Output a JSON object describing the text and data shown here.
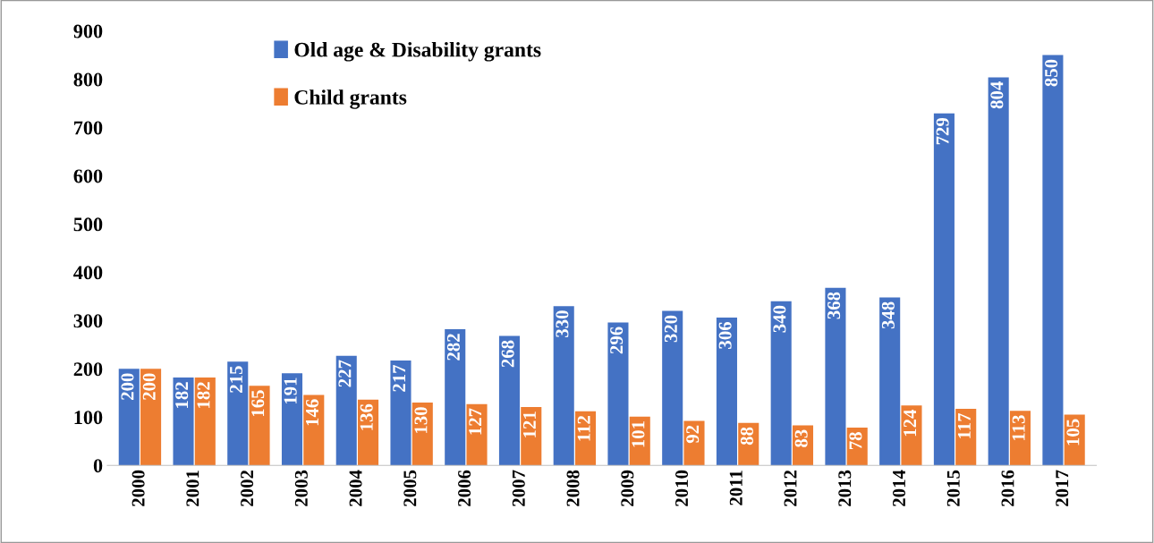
{
  "chart_data": {
    "type": "bar",
    "categories": [
      "2000",
      "2001",
      "2002",
      "2003",
      "2004",
      "2005",
      "2006",
      "2007",
      "2008",
      "2009",
      "2010",
      "2011",
      "2012",
      "2013",
      "2014",
      "2015",
      "2016",
      "2017"
    ],
    "series": [
      {
        "name": "Old age & Disability grants",
        "color": "#4472c4",
        "values": [
          200,
          182,
          215,
          191,
          227,
          217,
          282,
          268,
          330,
          296,
          320,
          306,
          340,
          368,
          348,
          729,
          804,
          850
        ]
      },
      {
        "name": "Child grants",
        "color": "#ed7d31",
        "values": [
          200,
          182,
          165,
          146,
          136,
          130,
          127,
          121,
          112,
          101,
          92,
          88,
          83,
          78,
          124,
          117,
          113,
          105
        ]
      }
    ],
    "ylim": [
      0,
      900
    ],
    "yticks": [
      0,
      100,
      200,
      300,
      400,
      500,
      600,
      700,
      800,
      900
    ],
    "data_labels": true,
    "legend": "top left",
    "grid": false
  }
}
